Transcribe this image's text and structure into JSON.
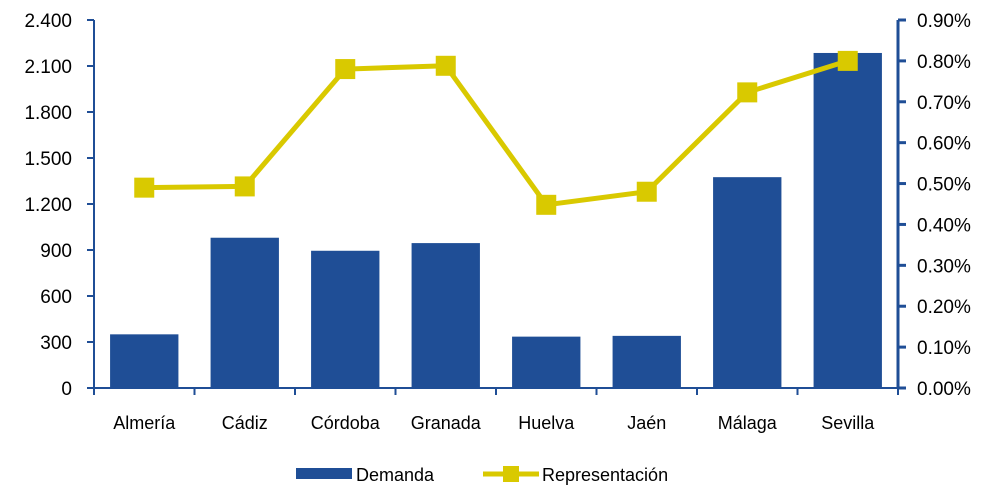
{
  "chart_data": {
    "type": "bar",
    "categories": [
      "Almería",
      "Cádiz",
      "Córdoba",
      "Granada",
      "Huelva",
      "Jaén",
      "Málaga",
      "Sevilla"
    ],
    "series": [
      {
        "name": "Demanda",
        "type": "bar",
        "axis": "left",
        "color": "#1f4e96",
        "values": [
          350,
          980,
          895,
          945,
          335,
          340,
          1375,
          2185
        ]
      },
      {
        "name": "Representación",
        "type": "line",
        "axis": "right",
        "color": "#d9c900",
        "marker": "square",
        "values": [
          0.49,
          0.493,
          0.78,
          0.788,
          0.448,
          0.48,
          0.723,
          0.8
        ]
      }
    ],
    "y_left": {
      "ylim": [
        0,
        2400
      ],
      "ticks": [
        0,
        300,
        600,
        900,
        1200,
        1500,
        1800,
        2100,
        2400
      ],
      "tick_labels": [
        "0",
        "300",
        "600",
        "900",
        "1.200",
        "1.500",
        "1.800",
        "2.100",
        "2.400"
      ]
    },
    "y_right": {
      "ylim": [
        0,
        0.9
      ],
      "ticks": [
        0,
        0.1,
        0.2,
        0.3,
        0.4,
        0.5,
        0.6,
        0.7,
        0.8,
        0.9
      ],
      "tick_labels": [
        "0.00%",
        "0.10%",
        "0.20%",
        "0.30%",
        "0.40%",
        "0.50%",
        "0.60%",
        "0.70%",
        "0.80%",
        "0.90%"
      ]
    },
    "axis_color": "#1f4e96",
    "grid": false,
    "legend": {
      "position": "bottom",
      "entries": [
        "Demanda",
        "Representación"
      ]
    }
  }
}
